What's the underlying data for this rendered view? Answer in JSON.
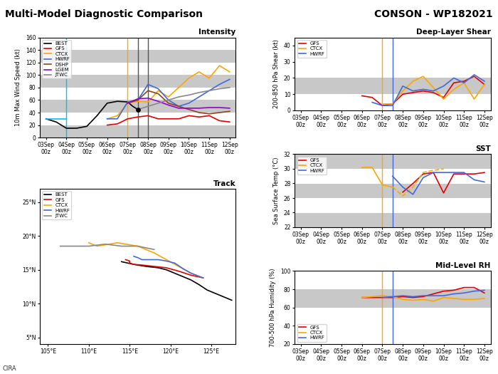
{
  "title": "Multi-Model Diagnostic Comparison",
  "subtitle": "CONSON - WP182021",
  "annotations": [
    "CIRA"
  ],
  "chart_data": [
    {
      "type": "line",
      "title": "Intensity",
      "ylabel": "10m Max Wind Speed (kt)",
      "xlim": [
        -0.3,
        9.3
      ],
      "xticks": [
        {
          "value": 0,
          "label": "03Sep\n00z"
        },
        {
          "value": 1,
          "label": "04Sep\n00z"
        },
        {
          "value": 2,
          "label": "05Sep\n00z"
        },
        {
          "value": 3,
          "label": "06Sep\n00z"
        },
        {
          "value": 4,
          "label": "07Sep\n00z"
        },
        {
          "value": 5,
          "label": "08Sep\n00z"
        },
        {
          "value": 6,
          "label": "09Sep\n00z"
        },
        {
          "value": 7,
          "label": "10Sep\n00z"
        },
        {
          "value": 8,
          "label": "11Sep\n00z"
        },
        {
          "value": 9,
          "label": "12Sep\n00z"
        }
      ],
      "ylim": [
        0,
        160
      ],
      "yticks": [
        0,
        20,
        40,
        60,
        80,
        100,
        120,
        140,
        160
      ],
      "bands": [
        [
          0,
          20
        ],
        [
          40,
          60
        ],
        [
          80,
          100
        ],
        [
          120,
          140
        ]
      ],
      "band_color": "#c8c8c8",
      "vlines": [
        {
          "x": 1.0,
          "color": "#00bfff"
        },
        {
          "x": 4.0,
          "color": "#ffa500"
        },
        {
          "x": 4.5,
          "color": "#555555"
        },
        {
          "x": 5.0,
          "color": "#555555"
        }
      ],
      "legend": "upper left",
      "series": [
        {
          "name": "BEST",
          "color": "#000000",
          "x": [
            0,
            0.5,
            1.0,
            1.5,
            2.0,
            2.5,
            3.0,
            3.5,
            4.0,
            4.25,
            4.5
          ],
          "values": [
            30,
            25,
            15,
            15,
            18,
            35,
            55,
            58,
            57,
            50,
            45
          ]
        },
        {
          "name": "GFS",
          "color": "#e60000",
          "x": [
            3.0,
            3.5,
            4.0,
            4.5,
            5.0,
            5.5,
            6.0,
            6.5,
            7.0,
            7.5,
            8.0,
            8.5,
            9.0
          ],
          "values": [
            20,
            22,
            30,
            33,
            35,
            30,
            30,
            30,
            35,
            33,
            35,
            27,
            25
          ]
        },
        {
          "name": "CTCX",
          "color": "#ffa500",
          "x": [
            3.0,
            3.5,
            4.0,
            4.5,
            5.0,
            5.5,
            6.0,
            6.5,
            7.0,
            7.5,
            8.0,
            8.5,
            9.0
          ],
          "values": [
            30,
            35,
            55,
            58,
            57,
            75,
            65,
            80,
            95,
            105,
            95,
            115,
            105
          ]
        },
        {
          "name": "HWRF",
          "color": "#4169e1",
          "x": [
            3.0,
            3.5,
            4.0,
            4.5,
            5.0,
            5.5,
            6.0,
            6.5,
            7.0,
            7.5,
            8.0,
            8.5,
            9.0
          ],
          "values": [
            30,
            30,
            57,
            60,
            85,
            78,
            60,
            50,
            55,
            65,
            75,
            85,
            93
          ]
        },
        {
          "name": "DSHP",
          "color": "#8b4513",
          "x": [
            4.0,
            4.5,
            5.0,
            5.5,
            6.0,
            6.5,
            7.0,
            7.5,
            8.0,
            8.5,
            9.0
          ],
          "values": [
            55,
            60,
            75,
            70,
            55,
            50,
            45,
            40,
            38,
            40,
            42
          ]
        },
        {
          "name": "LGEM",
          "color": "#9400d3",
          "x": [
            4.0,
            4.5,
            5.0,
            5.5,
            6.0,
            6.5,
            7.0,
            7.5,
            8.0,
            8.5,
            9.0
          ],
          "values": [
            55,
            62,
            63,
            58,
            52,
            47,
            47,
            47,
            48,
            48,
            47
          ]
        },
        {
          "name": "JTWC",
          "color": "#888888",
          "x": [
            4.5,
            5.0,
            5.5,
            6.0,
            6.5,
            7.0,
            7.5,
            8.0,
            8.5,
            9.0
          ],
          "values": [
            45,
            50,
            55,
            60,
            65,
            68,
            72,
            75,
            78,
            80
          ]
        },
        {
          "color": "#00bfff",
          "x": [
            0.0,
            1.0
          ],
          "values": [
            30,
            30
          ]
        },
        {
          "type": "scatter",
          "color": "#000000",
          "x": [
            4.5
          ],
          "values": [
            45
          ]
        }
      ]
    },
    {
      "type": "line",
      "title": "Track",
      "xlim": [
        104,
        128
      ],
      "xticks": [
        {
          "value": 105,
          "label": "105°E"
        },
        {
          "value": 110,
          "label": "110°E"
        },
        {
          "value": 115,
          "label": "115°E"
        },
        {
          "value": 120,
          "label": "120°E"
        },
        {
          "value": 125,
          "label": "125°E"
        }
      ],
      "ylim": [
        4,
        27
      ],
      "yticks": [
        {
          "value": 5,
          "label": "5°N"
        },
        {
          "value": 10,
          "label": "10°N"
        },
        {
          "value": 15,
          "label": "15°N"
        },
        {
          "value": 20,
          "label": "20°N"
        },
        {
          "value": 25,
          "label": "25°N"
        }
      ],
      "legend": "upper left",
      "series": [
        {
          "name": "BEST",
          "color": "#000000",
          "x": [
            127.5,
            126.5,
            125.5,
            124.5,
            123.5,
            122.5,
            121.5,
            120.5,
            119.5,
            118.5,
            117.0,
            115.5,
            114.0
          ],
          "values": [
            10.5,
            11.0,
            11.5,
            12.0,
            12.8,
            13.5,
            14.0,
            14.5,
            15.0,
            15.3,
            15.5,
            15.8,
            16.2
          ]
        },
        {
          "name": "GFS",
          "color": "#e60000",
          "x": [
            124.0,
            122.5,
            121.0,
            119.5,
            118.0,
            116.5,
            115.5,
            115.0,
            115.0,
            114.5
          ],
          "values": [
            13.8,
            14.2,
            14.8,
            15.3,
            15.5,
            15.7,
            15.8,
            16.0,
            16.3,
            16.5
          ]
        },
        {
          "name": "CTCX",
          "color": "#ffa500",
          "x": [
            124.0,
            122.5,
            121.0,
            119.5,
            118.0,
            116.0,
            113.5,
            111.0,
            110.0
          ],
          "values": [
            13.8,
            14.5,
            15.5,
            16.5,
            17.5,
            18.5,
            19.0,
            18.5,
            19.0
          ]
        },
        {
          "name": "HWRF",
          "color": "#4169e1",
          "x": [
            124.0,
            122.5,
            121.5,
            120.5,
            119.5,
            118.5,
            117.5,
            116.5,
            116.0,
            115.5
          ],
          "values": [
            13.8,
            14.5,
            15.2,
            16.0,
            16.3,
            16.5,
            16.5,
            16.5,
            16.8,
            17.0
          ]
        },
        {
          "name": "JTWC",
          "color": "#888888",
          "x": [
            118.0,
            116.0,
            114.0,
            112.0,
            110.0,
            108.0,
            106.5
          ],
          "values": [
            18.0,
            18.5,
            18.5,
            18.8,
            18.5,
            18.5,
            18.5
          ]
        }
      ]
    },
    {
      "type": "line",
      "title": "Deep-Layer Shear",
      "ylabel": "200-850 hPa Shear (kt)",
      "xlim": [
        -0.3,
        9.3
      ],
      "xticks": [
        {
          "value": 0,
          "label": "03Sep\n00z"
        },
        {
          "value": 1,
          "label": "04Sep\n00z"
        },
        {
          "value": 2,
          "label": "05Sep\n00z"
        },
        {
          "value": 3,
          "label": "06Sep\n00z"
        },
        {
          "value": 4,
          "label": "07Sep\n00z"
        },
        {
          "value": 5,
          "label": "08Sep\n00z"
        },
        {
          "value": 6,
          "label": "09Sep\n00z"
        },
        {
          "value": 7,
          "label": "10Sep\n00z"
        },
        {
          "value": 8,
          "label": "11Sep\n00z"
        },
        {
          "value": 9,
          "label": "12Sep\n00z"
        }
      ],
      "ylim": [
        0,
        45
      ],
      "yticks": [
        0,
        10,
        20,
        30,
        40
      ],
      "bands": [
        [
          10,
          20
        ]
      ],
      "band_color": "#c8c8c8",
      "vlines": [
        {
          "x": 4.0,
          "color": "#ffa500"
        },
        {
          "x": 4.5,
          "color": "#4169e1"
        }
      ],
      "legend": "upper left",
      "series": [
        {
          "name": "GFS",
          "color": "#e60000",
          "x": [
            3.0,
            3.5,
            4.0,
            4.5,
            5.0,
            5.5,
            6.0,
            6.5,
            7.0,
            7.5,
            8.0,
            8.5,
            9.0
          ],
          "values": [
            9,
            8,
            3,
            4,
            10,
            11,
            12,
            11,
            8,
            17,
            18,
            21,
            16
          ]
        },
        {
          "name": "CTCX",
          "color": "#ffa500",
          "x": [
            4.0,
            4.5,
            5.0,
            5.5,
            6.0,
            6.5,
            7.0,
            7.5,
            8.0,
            8.5,
            9.0
          ],
          "values": [
            4,
            4,
            12,
            18,
            21,
            14,
            7,
            13,
            17,
            7,
            16
          ]
        },
        {
          "name": "HWRF",
          "color": "#4169e1",
          "x": [
            3.5,
            4.0,
            4.5,
            5.0,
            5.5,
            6.0,
            6.5,
            7.0,
            7.5,
            8.0,
            8.5,
            9.0
          ],
          "values": [
            5,
            3,
            3,
            15,
            12,
            13,
            12,
            15,
            20,
            17,
            22,
            18
          ]
        }
      ]
    },
    {
      "type": "line",
      "title": "SST",
      "ylabel": "Sea Surface Temp (°C)",
      "xlim": [
        -0.3,
        9.3
      ],
      "xticks": [
        {
          "value": 0,
          "label": "03Sep\n00z"
        },
        {
          "value": 1,
          "label": "04Sep\n00z"
        },
        {
          "value": 2,
          "label": "05Sep\n00z"
        },
        {
          "value": 3,
          "label": "06Sep\n00z"
        },
        {
          "value": 4,
          "label": "07Sep\n00z"
        },
        {
          "value": 5,
          "label": "08Sep\n00z"
        },
        {
          "value": 6,
          "label": "09Sep\n00z"
        },
        {
          "value": 7,
          "label": "10Sep\n00z"
        },
        {
          "value": 8,
          "label": "11Sep\n00z"
        },
        {
          "value": 9,
          "label": "12Sep\n00z"
        }
      ],
      "ylim": [
        22,
        32
      ],
      "yticks": [
        22,
        24,
        26,
        28,
        30,
        32
      ],
      "bands": [
        [
          22,
          24
        ],
        [
          26,
          28
        ],
        [
          30,
          32
        ]
      ],
      "band_color": "#c8c8c8",
      "vlines": [
        {
          "x": 4.0,
          "color": "#ffa500"
        },
        {
          "x": 4.5,
          "color": "#4169e1"
        }
      ],
      "legend": "upper left",
      "series": [
        {
          "name": "GFS",
          "color": "#e60000",
          "x": [
            3.0,
            3.5,
            4.0,
            4.5,
            5.0,
            5.5,
            6.0,
            6.5,
            7.0,
            7.5,
            8.0,
            8.5,
            9.0
          ],
          "values": [
            null,
            null,
            null,
            null,
            26.8,
            28.0,
            29.3,
            29.5,
            26.7,
            29.3,
            29.3,
            29.3,
            29.5
          ]
        },
        {
          "name": "CTCX",
          "color": "#ffa500",
          "x": [
            3.0,
            3.5,
            4.0,
            4.5
          ],
          "values": [
            30.2,
            30.2,
            27.8,
            27.5
          ]
        },
        {
          "color": "#ffa500",
          "line_style": "dashed",
          "x": [
            4.5,
            5.0,
            5.5,
            6.0,
            6.5,
            7.0
          ],
          "values": [
            27.5,
            26.3,
            27.5,
            29.5,
            29.8,
            30.0
          ]
        },
        {
          "name": "HWRF",
          "color": "#4169e1",
          "x": [
            3.0,
            3.5,
            4.0,
            4.5,
            5.0,
            5.5,
            6.0,
            6.5,
            7.0,
            7.5,
            8.0,
            8.5,
            9.0
          ],
          "values": [
            null,
            null,
            null,
            29.0,
            27.5,
            26.5,
            28.8,
            29.5,
            29.5,
            29.5,
            29.5,
            28.5,
            28.2
          ]
        }
      ]
    },
    {
      "type": "line",
      "title": "Mid-Level RH",
      "ylabel": "700-500 hPa Humidity (%)",
      "xlim": [
        -0.3,
        9.3
      ],
      "xticks": [
        {
          "value": 0,
          "label": "03Sep\n00z"
        },
        {
          "value": 1,
          "label": "04Sep\n00z"
        },
        {
          "value": 2,
          "label": "05Sep\n00z"
        },
        {
          "value": 3,
          "label": "06Sep\n00z"
        },
        {
          "value": 4,
          "label": "07Sep\n00z"
        },
        {
          "value": 5,
          "label": "08Sep\n00z"
        },
        {
          "value": 6,
          "label": "09Sep\n00z"
        },
        {
          "value": 7,
          "label": "10Sep\n00z"
        },
        {
          "value": 8,
          "label": "11Sep\n00z"
        },
        {
          "value": 9,
          "label": "12Sep\n00z"
        }
      ],
      "ylim": [
        20,
        100
      ],
      "yticks": [
        20,
        40,
        60,
        80,
        100
      ],
      "bands": [
        [
          60,
          80
        ]
      ],
      "band_color": "#c8c8c8",
      "vlines": [
        {
          "x": 4.0,
          "color": "#ffa500"
        },
        {
          "x": 4.5,
          "color": "#4169e1"
        }
      ],
      "legend": "lower left",
      "series": [
        {
          "name": "GFS",
          "color": "#e60000",
          "x": [
            3.0,
            3.5,
            4.0,
            4.5,
            5.0,
            5.5,
            6.0,
            6.5,
            7.0,
            7.5,
            8.0,
            8.5,
            9.0
          ],
          "values": [
            71,
            71,
            71,
            71,
            72,
            71,
            72,
            75,
            78,
            79,
            82,
            82,
            76
          ]
        },
        {
          "name": "CTCX",
          "color": "#ffa500",
          "x": [
            3.0,
            3.5,
            4.0,
            4.5,
            5.0,
            5.5,
            6.0,
            6.5,
            7.0,
            7.5,
            8.0,
            8.5,
            9.0
          ],
          "values": [
            71,
            72,
            73,
            72,
            69,
            68,
            69,
            67,
            71,
            70,
            69,
            69,
            70
          ]
        },
        {
          "name": "HWRF",
          "color": "#4169e1",
          "x": [
            4.0,
            4.5,
            5.0,
            5.5,
            6.0,
            6.5,
            7.0,
            7.5,
            8.0,
            8.5,
            9.0
          ],
          "values": [
            71,
            72,
            73,
            72,
            73,
            73,
            73,
            75,
            76,
            78,
            79
          ]
        }
      ]
    }
  ]
}
